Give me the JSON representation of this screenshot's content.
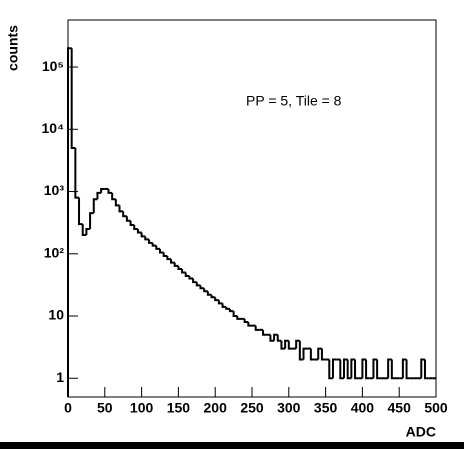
{
  "chart_data": {
    "type": "histogram",
    "x_label": "ADC",
    "y_label": "counts",
    "annotation": "PP = 5, Tile = 8",
    "color": "#000000",
    "log_y": true,
    "bins": [
      0,
      5,
      10,
      15,
      20,
      25,
      30,
      35,
      40,
      45,
      50,
      55,
      60,
      65,
      70,
      75,
      80,
      85,
      90,
      95,
      100,
      105,
      110,
      115,
      120,
      125,
      130,
      135,
      140,
      145,
      150,
      155,
      160,
      165,
      170,
      175,
      180,
      185,
      190,
      195,
      200,
      205,
      210,
      215,
      220,
      225,
      230,
      235,
      240,
      245,
      250,
      255,
      260,
      265,
      270,
      275,
      280,
      285,
      290,
      295,
      300,
      305,
      310,
      315,
      320,
      325,
      330,
      335,
      340,
      345,
      350,
      355,
      360,
      365,
      370,
      375,
      380,
      385,
      390,
      395,
      400,
      405,
      410,
      415,
      420,
      425,
      430,
      435,
      440,
      445,
      450,
      455,
      460,
      465,
      470,
      475,
      480,
      485,
      490,
      495,
      500
    ],
    "values": [
      200000,
      5000,
      800,
      300,
      200,
      250,
      450,
      750,
      950,
      1100,
      1100,
      950,
      750,
      600,
      480,
      400,
      340,
      290,
      250,
      220,
      190,
      170,
      150,
      135,
      120,
      105,
      92,
      82,
      72,
      64,
      57,
      50,
      44,
      40,
      35,
      31,
      28,
      25,
      22,
      20,
      18,
      16,
      14,
      13,
      12,
      10,
      9,
      9,
      8,
      7,
      7,
      6,
      6,
      5,
      5,
      4,
      5,
      4,
      3,
      4,
      3,
      3,
      4,
      2,
      3,
      3,
      2,
      2,
      3,
      2,
      2,
      1,
      2,
      2,
      1,
      2,
      1,
      2,
      1,
      1,
      2,
      1,
      1,
      2,
      1,
      1,
      1,
      2,
      1,
      1,
      1,
      2,
      1,
      1,
      1,
      1,
      2,
      1,
      1,
      1
    ],
    "xlim": [
      0,
      500
    ],
    "xticks": [
      0,
      50,
      100,
      150,
      200,
      250,
      300,
      350,
      400,
      450,
      500
    ],
    "ylim": [
      0.5,
      570000
    ],
    "yticks": [
      1,
      10,
      {
        "value": 100,
        "label": "10²"
      },
      {
        "value": 1000,
        "label": "10³"
      },
      {
        "value": 10000,
        "label": "10⁴"
      },
      {
        "value": 100000,
        "label": "10⁵"
      }
    ]
  }
}
